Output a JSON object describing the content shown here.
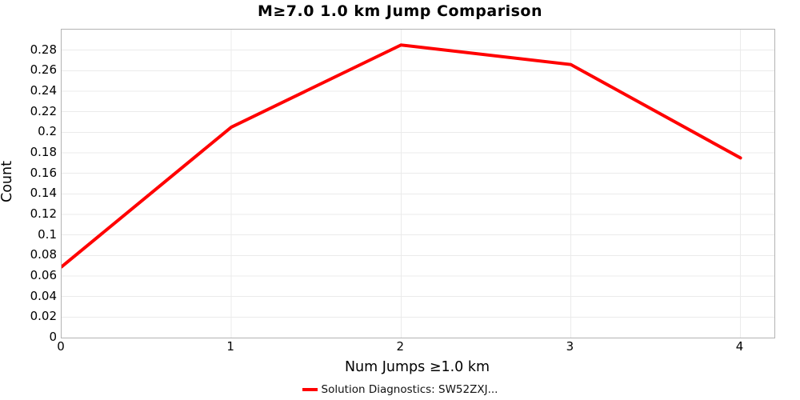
{
  "figure": {
    "background": "#ffffff",
    "text_color": "#000000",
    "grid_color": "#ebebeb",
    "axis_border_color": "#b3b3b3"
  },
  "chart_data": {
    "type": "line",
    "title": "M≥7.0 1.0 km Jump Comparison",
    "xlabel": "Num Jumps ≥1.0 km",
    "ylabel": "Count",
    "x": [
      0,
      1,
      2,
      3,
      4
    ],
    "series": [
      {
        "name": "Solution Diagnostics: SW52ZXJ...",
        "color": "#ff0000",
        "line_width": 4,
        "values": [
          0.069,
          0.205,
          0.285,
          0.266,
          0.175
        ]
      }
    ],
    "xlim": [
      0,
      4.2
    ],
    "ylim": [
      0,
      0.3
    ],
    "x_ticks": [
      0,
      1,
      2,
      3,
      4
    ],
    "y_ticks": [
      0,
      0.02,
      0.04,
      0.06,
      0.08,
      0.1,
      0.12,
      0.14,
      0.16,
      0.18,
      0.2,
      0.22,
      0.24,
      0.26,
      0.28
    ],
    "grid": true,
    "legend_position": "bottom-center"
  }
}
